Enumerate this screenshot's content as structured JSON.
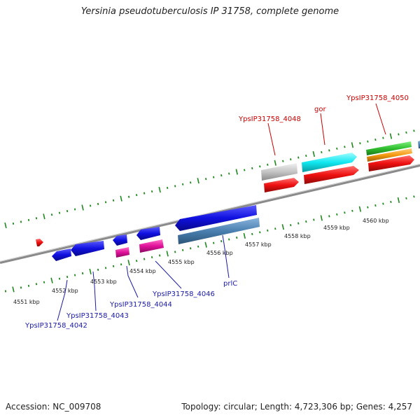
{
  "title": "Yersinia pseudotuberculosis IP 31758, complete genome",
  "footer": {
    "accession": "Accession: NC_009708",
    "stats": "Topology: circular; Length: 4,723,306 bp; Genes: 4,257"
  },
  "scale_labels": [
    "4551 kbp",
    "4552 kbp",
    "4553 kbp",
    "4554 kbp",
    "4555 kbp",
    "4556 kbp",
    "4557 kbp",
    "4558 kbp",
    "4559 kbp",
    "4560 kbp"
  ],
  "gene_labels": {
    "forward": [
      "YpsIP31758_4048",
      "gor",
      "YpsIP31758_4050"
    ],
    "reverse": [
      "YpsIP31758_4042",
      "YpsIP31758_4043",
      "YpsIP31758_4044",
      "YpsIP31758_4046",
      "prlC"
    ]
  },
  "colors": {
    "backbone": "#8a8a8a",
    "tick": "#1e8a1e",
    "forward_label": "#cc0000",
    "reverse_label": "#1a1aa8",
    "blue_gene": "#1010e0",
    "steel_gene": "#4a7fb0",
    "magenta_gene": "#e0109a",
    "red_gene": "#ee1010",
    "cyan_gene": "#10e8f0",
    "gray_gene": "#c4c4c4",
    "green_gene": "#30c030",
    "orange_gene": "#f59a10"
  }
}
